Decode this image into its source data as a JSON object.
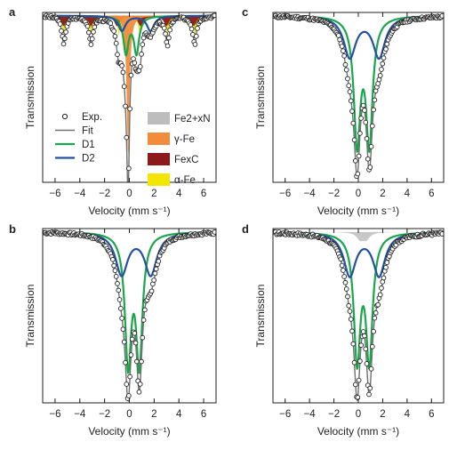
{
  "colors": {
    "data_marker": "#222222",
    "fit": "#707070",
    "D1": "#1aa64a",
    "D2": "#2352a0",
    "Fe2+xN": "#bdbdbd",
    "gamma-Fe": "#f28c3a",
    "FexC": "#8b1a1a",
    "alpha-Fe": "#f2e600"
  },
  "legend": {
    "left": [
      {
        "key": "exp",
        "label": "Exp.",
        "kind": "marker"
      },
      {
        "key": "fit",
        "label": "Fit",
        "kind": "line"
      },
      {
        "key": "d1",
        "label": "D1",
        "kind": "line"
      },
      {
        "key": "d2",
        "label": "D2",
        "kind": "line"
      }
    ],
    "right": [
      {
        "key": "fe2xn",
        "label": "Fe2+xN",
        "kind": "patch"
      },
      {
        "key": "gammafe",
        "label": "γ-Fe",
        "kind": "patch"
      },
      {
        "key": "fexc",
        "label": "FexC",
        "kind": "patch"
      },
      {
        "key": "alphafe",
        "label": "α-Fe",
        "kind": "patch"
      }
    ]
  },
  "chart_data": [
    {
      "panel": "a",
      "type": "line",
      "xlabel": "Velocity (mm s⁻¹)",
      "ylabel": "Transmission",
      "xlim": [
        -7,
        7
      ],
      "xticks": [
        -6,
        -4,
        -2,
        0,
        2,
        4,
        6
      ],
      "xticklabels": [
        "−6",
        "−4",
        "−2",
        "0",
        "2",
        "4",
        "6"
      ],
      "legend_position": "left and right columns inside plot",
      "series": [
        {
          "name": "D1",
          "type": "lorentzian_doublet",
          "center": 0.15,
          "split": 0.85,
          "depth": 0.22,
          "width": 0.5
        },
        {
          "name": "D2",
          "type": "lorentzian_doublet",
          "center": 0.55,
          "split": 2.3,
          "depth": 0.09,
          "width": 0.7
        },
        {
          "name": "γ-Fe",
          "type": "absorption_area",
          "lines": [
            -0.1
          ],
          "depth": 0.83,
          "width": 0.28
        },
        {
          "name": "FexC",
          "type": "sextet_area",
          "lines": [
            -5.3,
            -3.1,
            -1.0,
            0.9,
            3.0,
            5.2
          ],
          "depth": 0.06,
          "width": 0.5
        },
        {
          "name": "α-Fe",
          "type": "sextet_area",
          "lines": [
            -5.3,
            -3.1,
            -0.85,
            0.85,
            3.1,
            5.3
          ],
          "depth": 0.11,
          "width": 0.3
        }
      ]
    },
    {
      "panel": "b",
      "type": "line",
      "xlabel": "Velocity (mm s⁻¹)",
      "ylabel": "Transmission",
      "xlim": [
        -7,
        7
      ],
      "xticks": [
        -6,
        -4,
        -2,
        0,
        2,
        4,
        6
      ],
      "xticklabels": [
        "−6",
        "−4",
        "−2",
        "0",
        "2",
        "4",
        "6"
      ],
      "series": [
        {
          "name": "D1",
          "type": "lorentzian_doublet",
          "center": 0.35,
          "split": 0.9,
          "depth": 0.82,
          "width": 0.62
        },
        {
          "name": "D2",
          "type": "lorentzian_doublet",
          "center": 0.55,
          "split": 2.35,
          "depth": 0.27,
          "width": 1.2
        }
      ]
    },
    {
      "panel": "c",
      "type": "line",
      "xlabel": "Velocity (mm s⁻¹)",
      "ylabel": "Transmission",
      "xlim": [
        -7,
        7
      ],
      "xticks": [
        -6,
        -4,
        -2,
        0,
        2,
        4,
        6
      ],
      "xticklabels": [
        "−6",
        "−4",
        "−2",
        "0",
        "2",
        "4",
        "6"
      ],
      "series": [
        {
          "name": "D1",
          "type": "lorentzian_doublet",
          "center": 0.4,
          "split": 1.0,
          "depth": 0.82,
          "width": 0.65
        },
        {
          "name": "D2",
          "type": "lorentzian_doublet",
          "center": 0.5,
          "split": 2.4,
          "depth": 0.27,
          "width": 1.2
        }
      ]
    },
    {
      "panel": "d",
      "type": "line",
      "xlabel": "Velocity (mm s⁻¹)",
      "ylabel": "Transmission",
      "xlim": [
        -7,
        7
      ],
      "xticks": [
        -6,
        -4,
        -2,
        0,
        2,
        4,
        6
      ],
      "xticklabels": [
        "−6",
        "−4",
        "−2",
        "0",
        "2",
        "4",
        "6"
      ],
      "series": [
        {
          "name": "D1",
          "type": "lorentzian_doublet",
          "center": 0.4,
          "split": 1.0,
          "depth": 0.73,
          "width": 0.65
        },
        {
          "name": "D2",
          "type": "lorentzian_doublet",
          "center": 0.5,
          "split": 2.4,
          "depth": 0.25,
          "width": 1.2
        },
        {
          "name": "Fe2+xN",
          "type": "absorption_area",
          "lines": [
            0.15,
            0.65
          ],
          "depth": 0.04,
          "width": 0.7
        }
      ]
    }
  ]
}
